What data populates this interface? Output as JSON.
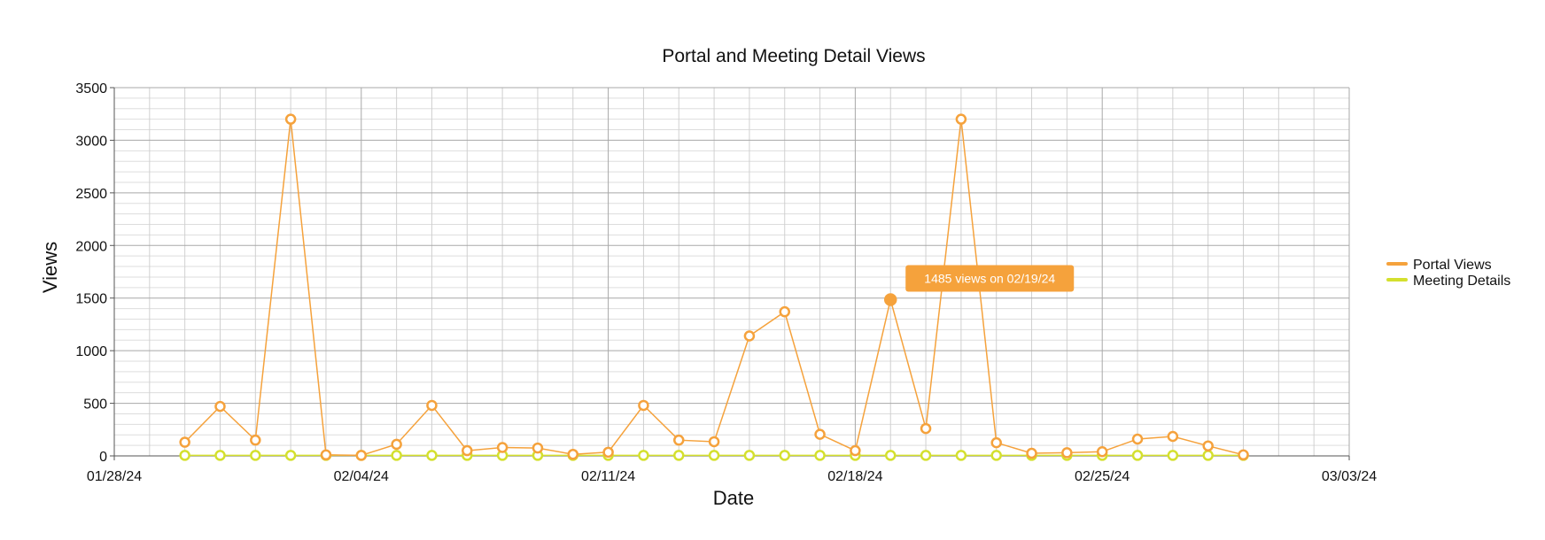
{
  "chart_data": {
    "type": "line",
    "title": "Portal and Meeting Detail Views",
    "xlabel": "Date",
    "ylabel": "Views",
    "ylim": [
      0,
      3500
    ],
    "yticks": [
      0,
      500,
      1000,
      1500,
      2000,
      2500,
      3000,
      3500
    ],
    "xlim": [
      "01/28/24",
      "03/03/24"
    ],
    "xtick_labels": [
      "01/28/24",
      "02/04/24",
      "02/11/24",
      "02/18/24",
      "02/25/24",
      "03/03/24"
    ],
    "grid": true,
    "legend_position": "right",
    "x": [
      "01/30/24",
      "01/31/24",
      "02/01/24",
      "02/02/24",
      "02/03/24",
      "02/04/24",
      "02/05/24",
      "02/06/24",
      "02/07/24",
      "02/08/24",
      "02/09/24",
      "02/10/24",
      "02/11/24",
      "02/12/24",
      "02/13/24",
      "02/14/24",
      "02/15/24",
      "02/16/24",
      "02/17/24",
      "02/18/24",
      "02/19/24",
      "02/20/24",
      "02/21/24",
      "02/22/24",
      "02/23/24",
      "02/24/24",
      "02/25/24",
      "02/26/24",
      "02/27/24",
      "02/28/24",
      "02/29/24"
    ],
    "series": [
      {
        "name": "Portal Views",
        "color": "#f5a23c",
        "values": [
          130,
          470,
          150,
          3200,
          10,
          5,
          110,
          480,
          50,
          80,
          75,
          15,
          35,
          480,
          150,
          135,
          1140,
          1370,
          205,
          50,
          1485,
          260,
          3200,
          125,
          25,
          30,
          40,
          160,
          185,
          95,
          10
        ]
      },
      {
        "name": "Meeting Details",
        "color": "#d4e02e",
        "values": [
          5,
          5,
          5,
          5,
          5,
          5,
          5,
          5,
          5,
          5,
          5,
          5,
          5,
          5,
          5,
          5,
          5,
          5,
          5,
          5,
          5,
          5,
          5,
          5,
          5,
          5,
          5,
          5,
          5,
          5,
          5
        ]
      }
    ],
    "highlight": {
      "series": 0,
      "index": 20
    },
    "tooltip": {
      "text": "1485 views on 02/19/24"
    }
  }
}
